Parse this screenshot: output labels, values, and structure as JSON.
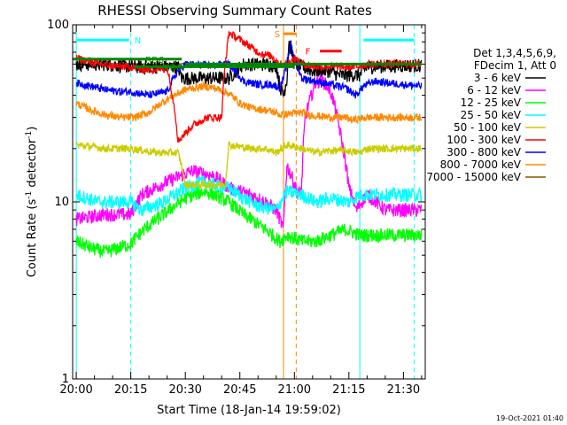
{
  "chart_data": {
    "type": "line",
    "title": "RHESSI Observing Summary Count Rates",
    "xlabel": "Start Time (18-Jan-14 19:59:02)",
    "ylabel_parts": [
      "Count Rate (s",
      "-1",
      " detector",
      "-1",
      ")"
    ],
    "yscale": "log",
    "ylim": [
      1,
      100
    ],
    "xlim_minutes": [
      -1,
      96
    ],
    "x_ticks": [
      {
        "label": "20:00",
        "min": 0
      },
      {
        "label": "20:15",
        "min": 15
      },
      {
        "label": "20:30",
        "min": 30
      },
      {
        "label": "20:45",
        "min": 45
      },
      {
        "label": "21:00",
        "min": 60
      },
      {
        "label": "21:15",
        "min": 75
      },
      {
        "label": "21:30",
        "min": 90
      }
    ],
    "y_ticks": [
      {
        "label": "1",
        "value": 1
      },
      {
        "label": "10",
        "value": 10
      },
      {
        "label": "100",
        "value": 100
      }
    ],
    "legend_header": [
      "Det 1,3,4,5,6,9,",
      "FDecim 1, Att 0"
    ],
    "legend_position": "right",
    "series": [
      {
        "name": "3 - 6 keV",
        "color": "#000000",
        "points": [
          [
            0,
            60
          ],
          [
            8,
            60
          ],
          [
            16,
            58
          ],
          [
            22,
            58
          ],
          [
            28,
            58
          ],
          [
            29,
            50
          ],
          [
            36,
            50
          ],
          [
            42,
            50
          ],
          [
            46,
            60
          ],
          [
            52,
            60
          ],
          [
            55,
            59
          ],
          [
            56,
            45
          ],
          [
            57,
            40
          ],
          [
            58,
            50
          ],
          [
            58.5,
            80
          ],
          [
            60,
            60
          ],
          [
            65,
            55
          ],
          [
            70,
            55
          ],
          [
            72,
            52
          ],
          [
            75,
            52
          ],
          [
            78,
            52
          ],
          [
            80,
            58
          ],
          [
            90,
            59
          ],
          [
            95,
            59
          ]
        ]
      },
      {
        "name": "6 - 12 keV",
        "color": "#ff00ff",
        "points": [
          [
            0,
            8
          ],
          [
            8,
            8.5
          ],
          [
            15,
            8.5
          ],
          [
            18,
            11
          ],
          [
            25,
            13
          ],
          [
            32,
            15
          ],
          [
            38,
            14
          ],
          [
            42,
            12
          ],
          [
            48,
            11
          ],
          [
            52,
            10
          ],
          [
            55,
            9
          ],
          [
            56,
            8
          ],
          [
            57,
            7
          ],
          [
            58,
            16
          ],
          [
            61,
            11
          ],
          [
            62,
            12
          ],
          [
            63,
            30
          ],
          [
            66,
            48
          ],
          [
            68,
            48
          ],
          [
            70,
            42
          ],
          [
            73,
            22
          ],
          [
            75,
            12
          ],
          [
            77,
            9
          ],
          [
            80,
            11
          ],
          [
            85,
            9
          ],
          [
            90,
            9
          ],
          [
            95,
            9
          ]
        ]
      },
      {
        "name": "12 - 25 keV",
        "color": "#00ff00",
        "points": [
          [
            0,
            6
          ],
          [
            4,
            5.5
          ],
          [
            8,
            5.2
          ],
          [
            15,
            5.8
          ],
          [
            18,
            6.8
          ],
          [
            24,
            8.5
          ],
          [
            30,
            10.5
          ],
          [
            35,
            11.5
          ],
          [
            38,
            11
          ],
          [
            42,
            10
          ],
          [
            46,
            8.5
          ],
          [
            50,
            7.5
          ],
          [
            54,
            6.5
          ],
          [
            56,
            6
          ],
          [
            58,
            6.5
          ],
          [
            62,
            6
          ],
          [
            66,
            6
          ],
          [
            70,
            6.5
          ],
          [
            74,
            7
          ],
          [
            78,
            6.5
          ],
          [
            82,
            6.5
          ],
          [
            88,
            6.5
          ],
          [
            95,
            6.5
          ]
        ]
      },
      {
        "name": "25 - 50 keV",
        "color": "#00ffff",
        "points": [
          [
            0,
            11
          ],
          [
            6,
            10
          ],
          [
            12,
            10
          ],
          [
            15,
            10
          ],
          [
            18,
            9
          ],
          [
            24,
            10
          ],
          [
            30,
            12
          ],
          [
            35,
            13
          ],
          [
            38,
            12.5
          ],
          [
            42,
            12
          ],
          [
            46,
            10.5
          ],
          [
            50,
            9.5
          ],
          [
            55,
            9
          ],
          [
            58,
            11.5
          ],
          [
            62,
            11
          ],
          [
            66,
            10
          ],
          [
            70,
            10.5
          ],
          [
            75,
            10
          ],
          [
            78,
            11
          ],
          [
            84,
            11
          ],
          [
            90,
            11
          ],
          [
            95,
            11
          ]
        ]
      },
      {
        "name": "50 - 100 keV",
        "color": "#cccc00",
        "points": [
          [
            0,
            21
          ],
          [
            8,
            20
          ],
          [
            15,
            20
          ],
          [
            22,
            19
          ],
          [
            28,
            19
          ],
          [
            30,
            12.5
          ],
          [
            34,
            12.5
          ],
          [
            38,
            12.5
          ],
          [
            41,
            12.5
          ],
          [
            42,
            21
          ],
          [
            48,
            20
          ],
          [
            52,
            20
          ],
          [
            55,
            19
          ],
          [
            58,
            21
          ],
          [
            62,
            20
          ],
          [
            66,
            19
          ],
          [
            70,
            19.5
          ],
          [
            74,
            19.5
          ],
          [
            78,
            19
          ],
          [
            80,
            20
          ],
          [
            84,
            20
          ],
          [
            90,
            20
          ],
          [
            95,
            20
          ]
        ]
      },
      {
        "name": "100 - 300 keV",
        "color": "#ff0000",
        "points": [
          [
            0,
            65
          ],
          [
            6,
            60
          ],
          [
            12,
            58
          ],
          [
            15,
            58
          ],
          [
            18,
            56
          ],
          [
            22,
            56
          ],
          [
            25,
            57
          ],
          [
            28,
            22
          ],
          [
            32,
            27
          ],
          [
            36,
            30
          ],
          [
            40,
            30
          ],
          [
            42,
            90
          ],
          [
            46,
            80
          ],
          [
            50,
            70
          ],
          [
            54,
            66
          ],
          [
            56,
            60
          ],
          [
            58,
            60
          ],
          [
            60,
            65
          ],
          [
            62,
            60
          ],
          [
            66,
            58
          ],
          [
            70,
            58
          ],
          [
            74,
            58
          ],
          [
            77,
            58
          ],
          [
            80,
            60
          ],
          [
            85,
            60
          ],
          [
            90,
            60
          ],
          [
            95,
            60
          ]
        ]
      },
      {
        "name": "300 - 800 keV",
        "color": "#0000ff",
        "points": [
          [
            0,
            47
          ],
          [
            4,
            45
          ],
          [
            8,
            43
          ],
          [
            12,
            42
          ],
          [
            15,
            42
          ],
          [
            20,
            40
          ],
          [
            25,
            42
          ],
          [
            28,
            55
          ],
          [
            30,
            60
          ],
          [
            36,
            59
          ],
          [
            42,
            60
          ],
          [
            46,
            48
          ],
          [
            50,
            46
          ],
          [
            54,
            46
          ],
          [
            56,
            44
          ],
          [
            57,
            50
          ],
          [
            58,
            60
          ],
          [
            59,
            80
          ],
          [
            60,
            65
          ],
          [
            62,
            50
          ],
          [
            66,
            48
          ],
          [
            70,
            46
          ],
          [
            74,
            44
          ],
          [
            77,
            40
          ],
          [
            79,
            45
          ],
          [
            82,
            48
          ],
          [
            86,
            47
          ],
          [
            90,
            46
          ],
          [
            95,
            45
          ]
        ]
      },
      {
        "name": "800 - 7000 keV",
        "color": "#ff8800",
        "points": [
          [
            0,
            36
          ],
          [
            4,
            33
          ],
          [
            8,
            31
          ],
          [
            12,
            30
          ],
          [
            16,
            30
          ],
          [
            20,
            32
          ],
          [
            25,
            38
          ],
          [
            30,
            43
          ],
          [
            35,
            45
          ],
          [
            38,
            44
          ],
          [
            42,
            41
          ],
          [
            45,
            36
          ],
          [
            48,
            34
          ],
          [
            52,
            33
          ],
          [
            55,
            32
          ],
          [
            56,
            31
          ],
          [
            62,
            32
          ],
          [
            64,
            31
          ],
          [
            70,
            30
          ],
          [
            74,
            30
          ],
          [
            76,
            29
          ],
          [
            80,
            30
          ],
          [
            84,
            30
          ],
          [
            88,
            30
          ],
          [
            95,
            30
          ]
        ]
      },
      {
        "name": "7000 - 15000 keV",
        "color": "#885500",
        "points": [
          [
            0,
            60
          ],
          [
            10,
            60
          ],
          [
            20,
            60
          ],
          [
            30,
            60
          ],
          [
            40,
            60
          ],
          [
            50,
            60
          ],
          [
            60,
            60
          ],
          [
            70,
            60
          ],
          [
            80,
            60
          ],
          [
            90,
            60
          ],
          [
            95,
            60
          ]
        ]
      }
    ],
    "orbit_bars": [
      {
        "label": "N",
        "color": "#00ffff",
        "x0": 0,
        "x1": 14.5,
        "y": 82,
        "label_at": 16
      },
      {
        "label": "",
        "color": "#00ffff",
        "x0": 79,
        "x1": 93,
        "y": 82,
        "label_at": null
      },
      {
        "label": "RD6",
        "color": "#008800",
        "x0": -1,
        "x1": 29,
        "y": 64,
        "label_at": 19
      },
      {
        "label": "RD0",
        "color": "#008800",
        "x0": 16,
        "x1": 60,
        "y": 58,
        "label_at": 24
      },
      {
        "label": "",
        "color": "#008800",
        "x0": 30,
        "x1": 95,
        "y": 60,
        "label_at": null
      },
      {
        "label": "S",
        "color": "#ff8800",
        "x0": 57,
        "x1": 60.5,
        "y": 89,
        "label_at": 54.5
      },
      {
        "label": "F",
        "color": "#ff0000",
        "x0": 67,
        "x1": 73,
        "y": 71,
        "label_at": 63
      }
    ],
    "vertical_markers": [
      {
        "min": 0,
        "color": "#00ffff",
        "style": "solid"
      },
      {
        "min": 15,
        "color": "#00ffff",
        "style": "dashed"
      },
      {
        "min": 78,
        "color": "#00ffff",
        "style": "solid"
      },
      {
        "min": 93,
        "color": "#00ffff",
        "style": "dashed"
      },
      {
        "min": 57,
        "color": "#ff8800",
        "style": "solid"
      },
      {
        "min": 60.5,
        "color": "#ff8800",
        "style": "dashed"
      }
    ],
    "footer_date": "19-Oct-2021 01:40"
  }
}
